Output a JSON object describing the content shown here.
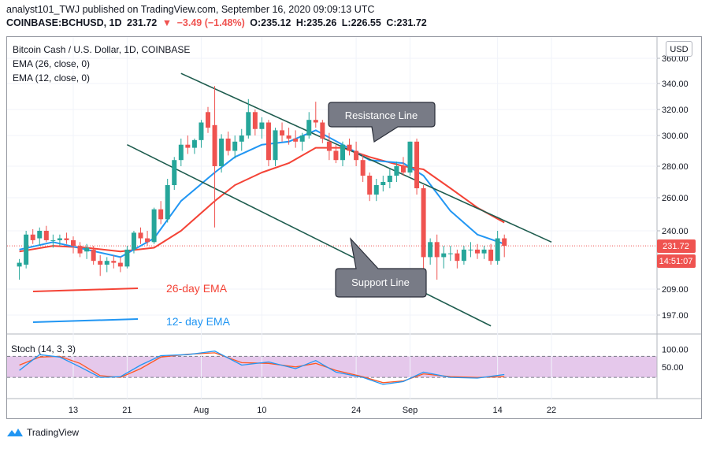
{
  "header": {
    "published_line": "analyst101_TWJ published on TradingView.com, September 16, 2020 09:09:13 UTC",
    "symbol": "COINBASE:BCHUSD, 1D",
    "last": "231.72",
    "change": "−3.49 (−1.48%)",
    "open": "O:235.12",
    "high": "H:235.26",
    "low": "L:226.55",
    "close": "C:231.72"
  },
  "legend": {
    "title": "Bitcoin Cash / U.S. Dollar, 1D, COINBASE",
    "ema26": "EMA (26, close, 0)",
    "ema12": "EMA (12, close, 0)"
  },
  "currency_button": "USD",
  "stoch_label": "Stoch (14, 3, 3)",
  "price_badge": "231.72",
  "time_badge": "14:51:07",
  "annotations": {
    "resistance": "Resistance Line",
    "support": "Support Line",
    "ema26_label": "26-day EMA",
    "ema12_label": "12- day EMA"
  },
  "footer": "TradingView",
  "colors": {
    "up": "#26a69a",
    "down": "#ef5350",
    "ema26": "#f44336",
    "ema12": "#2196f3",
    "trend": "#1e5c4e",
    "stoch_k": "#2196f3",
    "stoch_d": "#ff5722",
    "stoch_band": "#e1bee7"
  },
  "chart_data": {
    "type": "candlestick",
    "title": "Bitcoin Cash / U.S. Dollar, 1D, COINBASE",
    "price_axis": {
      "ticks": [
        360,
        340,
        320,
        300,
        280,
        260,
        240,
        209,
        197
      ],
      "range": [
        190,
        365
      ]
    },
    "x_axis": {
      "ticks": [
        {
          "label": "13",
          "date": "2020-07-13"
        },
        {
          "label": "21",
          "date": "2020-07-21"
        },
        {
          "label": "Aug",
          "date": "2020-08-01"
        },
        {
          "label": "10",
          "date": "2020-08-10"
        },
        {
          "label": "24",
          "date": "2020-08-24"
        },
        {
          "label": "Sep",
          "date": "2020-09-01"
        },
        {
          "label": "14",
          "date": "2020-09-14"
        },
        {
          "label": "22",
          "date": "2020-09-22"
        }
      ]
    },
    "candles": [
      {
        "date": "2020-07-05",
        "o": 221,
        "h": 225,
        "l": 214,
        "c": 223
      },
      {
        "date": "2020-07-06",
        "o": 222,
        "h": 240,
        "l": 220,
        "c": 238
      },
      {
        "date": "2020-07-07",
        "o": 238,
        "h": 241,
        "l": 233,
        "c": 235
      },
      {
        "date": "2020-07-08",
        "o": 236,
        "h": 242,
        "l": 232,
        "c": 240
      },
      {
        "date": "2020-07-09",
        "o": 240,
        "h": 243,
        "l": 234,
        "c": 235
      },
      {
        "date": "2020-07-10",
        "o": 235,
        "h": 238,
        "l": 231,
        "c": 235
      },
      {
        "date": "2020-07-11",
        "o": 235,
        "h": 238,
        "l": 232,
        "c": 236
      },
      {
        "date": "2020-07-12",
        "o": 236,
        "h": 239,
        "l": 233,
        "c": 235
      },
      {
        "date": "2020-07-13",
        "o": 235,
        "h": 237,
        "l": 228,
        "c": 232
      },
      {
        "date": "2020-07-14",
        "o": 232,
        "h": 234,
        "l": 226,
        "c": 228
      },
      {
        "date": "2020-07-15",
        "o": 229,
        "h": 233,
        "l": 225,
        "c": 231
      },
      {
        "date": "2020-07-16",
        "o": 230,
        "h": 232,
        "l": 222,
        "c": 224
      },
      {
        "date": "2020-07-17",
        "o": 224,
        "h": 227,
        "l": 216,
        "c": 222
      },
      {
        "date": "2020-07-18",
        "o": 222,
        "h": 226,
        "l": 218,
        "c": 224
      },
      {
        "date": "2020-07-19",
        "o": 224,
        "h": 227,
        "l": 220,
        "c": 223
      },
      {
        "date": "2020-07-20",
        "o": 223,
        "h": 226,
        "l": 218,
        "c": 221
      },
      {
        "date": "2020-07-21",
        "o": 221,
        "h": 232,
        "l": 220,
        "c": 230
      },
      {
        "date": "2020-07-22",
        "o": 230,
        "h": 240,
        "l": 228,
        "c": 239
      },
      {
        "date": "2020-07-23",
        "o": 239,
        "h": 242,
        "l": 233,
        "c": 236
      },
      {
        "date": "2020-07-24",
        "o": 236,
        "h": 240,
        "l": 232,
        "c": 234
      },
      {
        "date": "2020-07-25",
        "o": 234,
        "h": 254,
        "l": 233,
        "c": 253
      },
      {
        "date": "2020-07-26",
        "o": 253,
        "h": 258,
        "l": 244,
        "c": 247
      },
      {
        "date": "2020-07-27",
        "o": 247,
        "h": 272,
        "l": 245,
        "c": 268
      },
      {
        "date": "2020-07-28",
        "o": 268,
        "h": 286,
        "l": 265,
        "c": 284
      },
      {
        "date": "2020-07-29",
        "o": 284,
        "h": 298,
        "l": 280,
        "c": 294
      },
      {
        "date": "2020-07-30",
        "o": 294,
        "h": 300,
        "l": 288,
        "c": 292
      },
      {
        "date": "2020-07-31",
        "o": 292,
        "h": 298,
        "l": 288,
        "c": 297
      },
      {
        "date": "2020-08-01",
        "o": 297,
        "h": 312,
        "l": 292,
        "c": 310
      },
      {
        "date": "2020-08-02",
        "o": 318,
        "h": 322,
        "l": 302,
        "c": 306
      },
      {
        "date": "2020-08-03",
        "o": 308,
        "h": 338,
        "l": 242,
        "c": 280
      },
      {
        "date": "2020-08-04",
        "o": 280,
        "h": 301,
        "l": 276,
        "c": 298
      },
      {
        "date": "2020-08-05",
        "o": 298,
        "h": 303,
        "l": 287,
        "c": 290
      },
      {
        "date": "2020-08-06",
        "o": 290,
        "h": 300,
        "l": 285,
        "c": 296
      },
      {
        "date": "2020-08-07",
        "o": 296,
        "h": 305,
        "l": 290,
        "c": 300
      },
      {
        "date": "2020-08-08",
        "o": 300,
        "h": 328,
        "l": 298,
        "c": 318
      },
      {
        "date": "2020-08-09",
        "o": 318,
        "h": 320,
        "l": 300,
        "c": 305
      },
      {
        "date": "2020-08-10",
        "o": 305,
        "h": 314,
        "l": 298,
        "c": 310
      },
      {
        "date": "2020-08-11",
        "o": 310,
        "h": 312,
        "l": 280,
        "c": 284
      },
      {
        "date": "2020-08-12",
        "o": 284,
        "h": 306,
        "l": 280,
        "c": 304
      },
      {
        "date": "2020-08-13",
        "o": 304,
        "h": 310,
        "l": 296,
        "c": 300
      },
      {
        "date": "2020-08-14",
        "o": 300,
        "h": 306,
        "l": 294,
        "c": 298
      },
      {
        "date": "2020-08-15",
        "o": 298,
        "h": 304,
        "l": 292,
        "c": 296
      },
      {
        "date": "2020-08-16",
        "o": 296,
        "h": 302,
        "l": 290,
        "c": 300
      },
      {
        "date": "2020-08-17",
        "o": 300,
        "h": 318,
        "l": 298,
        "c": 312
      },
      {
        "date": "2020-08-18",
        "o": 312,
        "h": 326,
        "l": 306,
        "c": 310
      },
      {
        "date": "2020-08-19",
        "o": 310,
        "h": 312,
        "l": 295,
        "c": 298
      },
      {
        "date": "2020-08-20",
        "o": 296,
        "h": 302,
        "l": 284,
        "c": 290
      },
      {
        "date": "2020-08-21",
        "o": 290,
        "h": 294,
        "l": 282,
        "c": 284
      },
      {
        "date": "2020-08-22",
        "o": 284,
        "h": 296,
        "l": 280,
        "c": 294
      },
      {
        "date": "2020-08-23",
        "o": 294,
        "h": 298,
        "l": 287,
        "c": 290
      },
      {
        "date": "2020-08-24",
        "o": 290,
        "h": 296,
        "l": 280,
        "c": 284
      },
      {
        "date": "2020-08-25",
        "o": 284,
        "h": 288,
        "l": 270,
        "c": 274
      },
      {
        "date": "2020-08-26",
        "o": 274,
        "h": 276,
        "l": 258,
        "c": 262
      },
      {
        "date": "2020-08-27",
        "o": 262,
        "h": 272,
        "l": 258,
        "c": 268
      },
      {
        "date": "2020-08-28",
        "o": 268,
        "h": 274,
        "l": 264,
        "c": 270
      },
      {
        "date": "2020-08-29",
        "o": 270,
        "h": 278,
        "l": 266,
        "c": 274
      },
      {
        "date": "2020-08-30",
        "o": 274,
        "h": 283,
        "l": 270,
        "c": 280
      },
      {
        "date": "2020-08-31",
        "o": 280,
        "h": 286,
        "l": 274,
        "c": 276
      },
      {
        "date": "2020-09-01",
        "o": 276,
        "h": 296,
        "l": 274,
        "c": 296
      },
      {
        "date": "2020-09-02",
        "o": 296,
        "h": 298,
        "l": 262,
        "c": 266
      },
      {
        "date": "2020-09-03",
        "o": 266,
        "h": 268,
        "l": 216,
        "c": 226
      },
      {
        "date": "2020-09-04",
        "o": 226,
        "h": 236,
        "l": 222,
        "c": 234
      },
      {
        "date": "2020-09-05",
        "o": 234,
        "h": 238,
        "l": 214,
        "c": 226
      },
      {
        "date": "2020-09-06",
        "o": 226,
        "h": 232,
        "l": 220,
        "c": 228
      },
      {
        "date": "2020-09-07",
        "o": 228,
        "h": 232,
        "l": 224,
        "c": 228
      },
      {
        "date": "2020-09-08",
        "o": 228,
        "h": 230,
        "l": 220,
        "c": 224
      },
      {
        "date": "2020-09-09",
        "o": 224,
        "h": 232,
        "l": 222,
        "c": 230
      },
      {
        "date": "2020-09-10",
        "o": 230,
        "h": 234,
        "l": 226,
        "c": 230
      },
      {
        "date": "2020-09-11",
        "o": 230,
        "h": 233,
        "l": 225,
        "c": 228
      },
      {
        "date": "2020-09-12",
        "o": 228,
        "h": 232,
        "l": 225,
        "c": 230
      },
      {
        "date": "2020-09-13",
        "o": 230,
        "h": 233,
        "l": 222,
        "c": 224
      },
      {
        "date": "2020-09-14",
        "o": 224,
        "h": 240,
        "l": 222,
        "c": 236
      },
      {
        "date": "2020-09-15",
        "o": 236,
        "h": 238,
        "l": 226,
        "c": 232
      }
    ],
    "series": [
      {
        "name": "EMA (26, close, 0)",
        "values": [
          {
            "date": "2020-07-05",
            "v": 229
          },
          {
            "date": "2020-07-10",
            "v": 232
          },
          {
            "date": "2020-07-15",
            "v": 231
          },
          {
            "date": "2020-07-20",
            "v": 229
          },
          {
            "date": "2020-07-25",
            "v": 231
          },
          {
            "date": "2020-07-29",
            "v": 240
          },
          {
            "date": "2020-08-03",
            "v": 258
          },
          {
            "date": "2020-08-06",
            "v": 268
          },
          {
            "date": "2020-08-10",
            "v": 276
          },
          {
            "date": "2020-08-14",
            "v": 282
          },
          {
            "date": "2020-08-18",
            "v": 292
          },
          {
            "date": "2020-08-22",
            "v": 292
          },
          {
            "date": "2020-08-26",
            "v": 286
          },
          {
            "date": "2020-08-31",
            "v": 280
          },
          {
            "date": "2020-09-03",
            "v": 278
          },
          {
            "date": "2020-09-07",
            "v": 266
          },
          {
            "date": "2020-09-11",
            "v": 254
          },
          {
            "date": "2020-09-15",
            "v": 245
          }
        ]
      },
      {
        "name": "EMA (12, close, 0)",
        "values": [
          {
            "date": "2020-07-05",
            "v": 230
          },
          {
            "date": "2020-07-10",
            "v": 234
          },
          {
            "date": "2020-07-15",
            "v": 230
          },
          {
            "date": "2020-07-20",
            "v": 226
          },
          {
            "date": "2020-07-25",
            "v": 236
          },
          {
            "date": "2020-07-29",
            "v": 258
          },
          {
            "date": "2020-08-03",
            "v": 276
          },
          {
            "date": "2020-08-06",
            "v": 286
          },
          {
            "date": "2020-08-10",
            "v": 294
          },
          {
            "date": "2020-08-14",
            "v": 296
          },
          {
            "date": "2020-08-18",
            "v": 304
          },
          {
            "date": "2020-08-22",
            "v": 294
          },
          {
            "date": "2020-08-26",
            "v": 284
          },
          {
            "date": "2020-08-31",
            "v": 282
          },
          {
            "date": "2020-09-03",
            "v": 274
          },
          {
            "date": "2020-09-07",
            "v": 252
          },
          {
            "date": "2020-09-11",
            "v": 238
          },
          {
            "date": "2020-09-15",
            "v": 233
          }
        ]
      }
    ],
    "stochastic": {
      "name": "Stoch (14, 3, 3)",
      "ticks": [
        100,
        50
      ],
      "range": [
        0,
        100
      ],
      "band": [
        20,
        80
      ],
      "k": [
        {
          "date": "2020-07-05",
          "v": 40
        },
        {
          "date": "2020-07-08",
          "v": 85
        },
        {
          "date": "2020-07-11",
          "v": 78
        },
        {
          "date": "2020-07-14",
          "v": 50
        },
        {
          "date": "2020-07-17",
          "v": 20
        },
        {
          "date": "2020-07-20",
          "v": 22
        },
        {
          "date": "2020-07-23",
          "v": 55
        },
        {
          "date": "2020-07-26",
          "v": 82
        },
        {
          "date": "2020-07-30",
          "v": 85
        },
        {
          "date": "2020-08-03",
          "v": 95
        },
        {
          "date": "2020-08-07",
          "v": 55
        },
        {
          "date": "2020-08-11",
          "v": 64
        },
        {
          "date": "2020-08-15",
          "v": 45
        },
        {
          "date": "2020-08-18",
          "v": 68
        },
        {
          "date": "2020-08-21",
          "v": 35
        },
        {
          "date": "2020-08-25",
          "v": 20
        },
        {
          "date": "2020-08-28",
          "v": 0
        },
        {
          "date": "2020-08-31",
          "v": 8
        },
        {
          "date": "2020-09-03",
          "v": 35
        },
        {
          "date": "2020-09-07",
          "v": 20
        },
        {
          "date": "2020-09-11",
          "v": 18
        },
        {
          "date": "2020-09-15",
          "v": 28
        }
      ],
      "d": [
        {
          "date": "2020-07-05",
          "v": 55
        },
        {
          "date": "2020-07-08",
          "v": 78
        },
        {
          "date": "2020-07-11",
          "v": 80
        },
        {
          "date": "2020-07-14",
          "v": 60
        },
        {
          "date": "2020-07-17",
          "v": 25
        },
        {
          "date": "2020-07-20",
          "v": 20
        },
        {
          "date": "2020-07-23",
          "v": 45
        },
        {
          "date": "2020-07-26",
          "v": 78
        },
        {
          "date": "2020-07-30",
          "v": 86
        },
        {
          "date": "2020-08-03",
          "v": 90
        },
        {
          "date": "2020-08-07",
          "v": 62
        },
        {
          "date": "2020-08-11",
          "v": 60
        },
        {
          "date": "2020-08-15",
          "v": 50
        },
        {
          "date": "2020-08-18",
          "v": 60
        },
        {
          "date": "2020-08-21",
          "v": 40
        },
        {
          "date": "2020-08-25",
          "v": 22
        },
        {
          "date": "2020-08-28",
          "v": 5
        },
        {
          "date": "2020-08-31",
          "v": 10
        },
        {
          "date": "2020-09-03",
          "v": 30
        },
        {
          "date": "2020-09-07",
          "v": 22
        },
        {
          "date": "2020-09-11",
          "v": 20
        },
        {
          "date": "2020-09-15",
          "v": 22
        }
      ]
    },
    "trendlines": [
      {
        "name": "Resistance Line",
        "from": {
          "date": "2020-07-29",
          "v": 348
        },
        "to": {
          "date": "2020-09-22",
          "v": 234
        }
      },
      {
        "name": "Support Line",
        "from": {
          "date": "2020-07-21",
          "v": 294
        },
        "to": {
          "date": "2020-09-13",
          "v": 192
        }
      }
    ]
  }
}
